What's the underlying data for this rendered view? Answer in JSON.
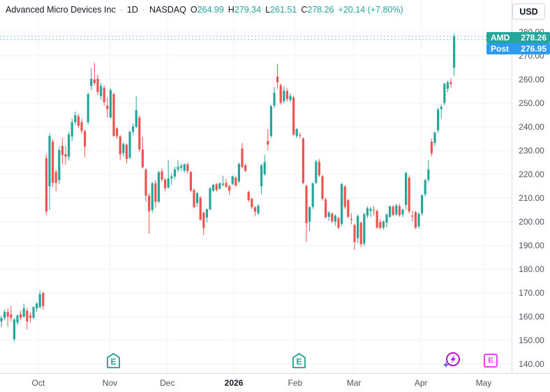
{
  "header": {
    "title": "Advanced Micro Devices Inc",
    "sep": "·",
    "interval": "1D",
    "exchange": "NASDAQ",
    "ohlc": [
      {
        "label": "O",
        "value": "264.99"
      },
      {
        "label": "H",
        "value": "279.34"
      },
      {
        "label": "L",
        "value": "261.51"
      },
      {
        "label": "C",
        "value": "278.26"
      }
    ],
    "change": "+20.14 (+7.80%)",
    "currency": "USD"
  },
  "price_labels": {
    "last": {
      "name": "AMD",
      "value": "278.26",
      "price": 278.26,
      "color": "#26a69a"
    },
    "post": {
      "name": "Post",
      "value": "276.95",
      "price": 276.95,
      "color": "#2d9bf0"
    }
  },
  "markers": {
    "earnings": [
      {
        "name": "earnings-icon",
        "i": 34.8
      },
      {
        "name": "earnings-icon",
        "i": 92.6
      }
    ],
    "ai_event": {
      "name": "tech-event-icon",
      "i": 140.2
    },
    "future_earnings": {
      "name": "upcoming-earnings-icon",
      "i": 152.4
    }
  },
  "chart_data": {
    "type": "candlestick",
    "title": "AMD daily candlestick chart",
    "up_color": "#26a69a",
    "down_color": "#ef5350",
    "grid_color": "#f0f2f8",
    "grid": true,
    "price_axis": {
      "min": 140,
      "max": 283,
      "tick_step": 10,
      "ticks": [
        280,
        270,
        260,
        250,
        240,
        230,
        220,
        210,
        200,
        190,
        180,
        170,
        160,
        150,
        140
      ]
    },
    "time_ticks": [
      {
        "label": "Oct",
        "i": 11.5
      },
      {
        "label": "Nov",
        "i": 33.8
      },
      {
        "label": "Dec",
        "i": 51.7
      },
      {
        "label": "2026",
        "i": 72.4,
        "year": true
      },
      {
        "label": "Feb",
        "i": 91.5
      },
      {
        "label": "Mar",
        "i": 109.8
      },
      {
        "label": "Apr",
        "i": 130.7
      },
      {
        "label": "May",
        "i": 150.2
      }
    ],
    "price_lines": [
      {
        "price": 278.26,
        "color": "#26a69a"
      },
      {
        "price": 276.95,
        "color": "#2d9bf0"
      }
    ],
    "candles": [
      [
        158,
        160.5,
        155.5,
        159.5
      ],
      [
        159.5,
        163,
        158.5,
        162
      ],
      [
        162,
        163.5,
        156,
        160
      ],
      [
        161,
        164.5,
        158,
        159.5
      ],
      [
        150.5,
        159.5,
        149.5,
        158.8
      ],
      [
        157.5,
        161,
        156.5,
        160.5
      ],
      [
        161,
        162.5,
        158.5,
        159.5
      ],
      [
        160,
        165.5,
        159.5,
        163.5
      ],
      [
        162.5,
        163.5,
        154.5,
        158
      ],
      [
        160.5,
        162,
        157.5,
        159.5
      ],
      [
        159.5,
        164.5,
        159,
        164
      ],
      [
        163.5,
        166,
        162,
        165.5
      ],
      [
        164,
        171,
        163.5,
        169.5
      ],
      [
        170,
        170.5,
        163,
        164.5
      ],
      [
        226.8,
        228.5,
        203,
        204.4
      ],
      [
        215,
        237.4,
        205,
        236.2
      ],
      [
        233.8,
        234.7,
        214.7,
        216.5
      ],
      [
        221,
        222,
        212.9,
        216.5
      ],
      [
        217.6,
        231.8,
        216,
        230.3
      ],
      [
        232,
        235.3,
        224.4,
        228.2
      ],
      [
        228.5,
        232,
        224,
        227.5
      ],
      [
        227.4,
        238,
        226,
        236.8
      ],
      [
        236,
        243.5,
        234,
        242
      ],
      [
        242,
        246.5,
        241,
        245
      ],
      [
        244.5,
        245.5,
        239.5,
        240.5
      ],
      [
        242,
        243.5,
        237,
        238.3
      ],
      [
        238.2,
        239,
        227.4,
        231.8
      ],
      [
        242,
        254.5,
        241,
        253.8
      ],
      [
        257.3,
        264.7,
        255.5,
        260.3
      ],
      [
        260,
        267,
        257.5,
        258.5
      ],
      [
        260.3,
        262,
        253.5,
        254.7
      ],
      [
        253,
        258.5,
        251.5,
        257.3
      ],
      [
        256.5,
        257.5,
        249,
        250.5
      ],
      [
        249,
        252.5,
        244,
        247.5
      ],
      [
        244,
        256.2,
        243.5,
        255.5
      ],
      [
        253.8,
        254.5,
        235.8,
        236.2
      ],
      [
        239.4,
        240,
        235,
        236
      ],
      [
        236,
        236.5,
        226,
        228.5
      ],
      [
        229,
        233.5,
        227.5,
        232.8
      ],
      [
        232.5,
        233,
        224.5,
        226.5
      ],
      [
        227,
        238.5,
        226.5,
        238
      ],
      [
        238,
        241.5,
        236.5,
        240.2
      ],
      [
        240,
        252.9,
        239.5,
        247.1
      ],
      [
        244,
        245,
        229.5,
        230.5
      ],
      [
        230.5,
        236,
        222.5,
        223
      ],
      [
        222,
        222.5,
        208.5,
        211
      ],
      [
        211,
        212,
        195,
        204.5
      ],
      [
        205,
        216.8,
        203.8,
        216.2
      ],
      [
        216.2,
        217.5,
        206,
        208.5
      ],
      [
        208.5,
        221.5,
        208,
        220.9
      ],
      [
        221.3,
        222.5,
        217,
        217.8
      ],
      [
        217.8,
        218.5,
        212.9,
        214.2
      ],
      [
        214.5,
        225.9,
        214,
        218.3
      ],
      [
        218.3,
        220.5,
        215.5,
        219.2
      ],
      [
        219.1,
        223.2,
        218,
        222.1
      ],
      [
        222,
        226,
        221,
        223.2
      ],
      [
        222.8,
        224.5,
        221.5,
        223.6
      ],
      [
        221.5,
        224.6,
        220.8,
        224.3
      ],
      [
        224.2,
        225,
        220.3,
        221.4
      ],
      [
        221,
        221.5,
        212.6,
        213.2
      ],
      [
        213.4,
        214,
        205.8,
        206.2
      ],
      [
        207.9,
        212.4,
        206.4,
        212.1
      ],
      [
        210.2,
        210.8,
        200.4,
        200.9
      ],
      [
        203.9,
        204.4,
        194.4,
        197.4
      ],
      [
        201.8,
        205.6,
        199.8,
        205.3
      ],
      [
        205.2,
        214.6,
        204.8,
        214.1
      ],
      [
        213.1,
        216,
        212.6,
        215.6
      ],
      [
        215.8,
        216.4,
        212.7,
        213.4
      ],
      [
        214,
        216.6,
        213.4,
        216.3
      ],
      [
        215.6,
        219.4,
        214.9,
        216.1
      ],
      [
        216.4,
        218.1,
        214.2,
        214.8
      ],
      [
        215.1,
        215.6,
        211.4,
        213.1
      ],
      [
        216,
        219.6,
        215.4,
        219.1
      ],
      [
        218.6,
        219.2,
        214.8,
        215.3
      ],
      [
        217,
        224.9,
        216.4,
        224.4
      ],
      [
        230.9,
        233.2,
        222.4,
        223.1
      ],
      [
        223.8,
        224.6,
        220.9,
        221.5
      ],
      [
        212.6,
        213.1,
        208.4,
        209.1
      ],
      [
        209.7,
        210.2,
        205.4,
        206.2
      ],
      [
        206.1,
        206.6,
        202.4,
        204.3
      ],
      [
        203.6,
        207.4,
        202.9,
        206.8
      ],
      [
        215,
        224.4,
        211.6,
        223.8
      ],
      [
        220.1,
        228.2,
        219.4,
        225.1
      ],
      [
        234.1,
        239.1,
        230.3,
        232.6
      ],
      [
        236.2,
        249.2,
        235.4,
        248.8
      ],
      [
        249,
        256.8,
        247.9,
        254.4
      ],
      [
        261.2,
        266.5,
        256.1,
        258.8
      ],
      [
        257.6,
        258.4,
        249.4,
        250.2
      ],
      [
        250.9,
        257.1,
        249.9,
        255.3
      ],
      [
        255.1,
        256.2,
        250.8,
        251.8
      ],
      [
        251.4,
        254.2,
        250.4,
        253.1
      ],
      [
        252.4,
        253.2,
        236.4,
        236.8
      ],
      [
        236.1,
        239.6,
        235.4,
        239.1
      ],
      [
        236.6,
        237.6,
        235.2,
        236.3
      ],
      [
        235.1,
        235.6,
        215.8,
        216.4
      ],
      [
        215.2,
        215.7,
        191.5,
        199.4
      ],
      [
        200.1,
        206.6,
        196.1,
        206.2
      ],
      [
        206.3,
        216.6,
        205.4,
        216.2
      ],
      [
        216.4,
        226.1,
        215.9,
        225.4
      ],
      [
        225.3,
        226.4,
        218.9,
        219.6
      ],
      [
        219.2,
        219.8,
        208.9,
        209.7
      ],
      [
        209.4,
        210.1,
        201.4,
        202
      ],
      [
        202.1,
        204.6,
        200.4,
        203.9
      ],
      [
        203.4,
        204.1,
        199.4,
        200.2
      ],
      [
        200.1,
        203.1,
        198.4,
        202.6
      ],
      [
        201.6,
        202.1,
        196.8,
        197.5
      ],
      [
        199.1,
        216.4,
        198.4,
        215.9
      ],
      [
        214.9,
        215.4,
        205.4,
        206.3
      ],
      [
        209.1,
        209.6,
        201.4,
        202.1
      ],
      [
        201.2,
        203.6,
        198.9,
        200.9
      ],
      [
        198.6,
        199.1,
        188.2,
        191.5
      ],
      [
        193.1,
        203.1,
        191.1,
        202.4
      ],
      [
        199.6,
        200.1,
        189.4,
        190.6
      ],
      [
        190.8,
        203.9,
        189.7,
        203.2
      ],
      [
        202.6,
        206.6,
        201.6,
        205.8
      ],
      [
        204.6,
        206.4,
        202.1,
        205.5
      ],
      [
        205.1,
        206.6,
        202.6,
        204.9
      ],
      [
        204.6,
        205.1,
        197.1,
        197.6
      ],
      [
        199.9,
        201.1,
        196.9,
        197.4
      ],
      [
        197.6,
        200.6,
        196.6,
        200.1
      ],
      [
        199.6,
        203.6,
        197.6,
        203.1
      ],
      [
        202.1,
        206.9,
        201.6,
        206.5
      ],
      [
        206.4,
        207.1,
        202.4,
        202.9
      ],
      [
        203.1,
        207.6,
        202.6,
        206.9
      ],
      [
        206.6,
        207.6,
        202.1,
        202.8
      ],
      [
        203.1,
        205.6,
        201.9,
        205.1
      ],
      [
        207.1,
        221.1,
        205.1,
        220.6
      ],
      [
        218.6,
        219.6,
        203.6,
        204.4
      ],
      [
        202.6,
        204.6,
        200.1,
        202.2
      ],
      [
        204.1,
        204.6,
        196.9,
        197.6
      ],
      [
        198.1,
        203.9,
        197.1,
        203.4
      ],
      [
        203.6,
        211.6,
        202.6,
        211.2
      ],
      [
        211.6,
        218.1,
        210.6,
        217.6
      ],
      [
        217.7,
        225.9,
        216.6,
        222.1
      ],
      [
        233.8,
        235.1,
        227.6,
        228.9
      ],
      [
        233.2,
        238.1,
        231.9,
        237.6
      ],
      [
        238.6,
        248.1,
        237.6,
        247.4
      ],
      [
        247.6,
        249.6,
        243.6,
        248.5
      ],
      [
        250.1,
        258.6,
        249.1,
        258.2
      ],
      [
        256.1,
        259.6,
        254.6,
        258.8
      ],
      [
        258.9,
        260.5,
        256.5,
        258.12
      ],
      [
        264.99,
        279.34,
        261.51,
        278.26
      ]
    ]
  }
}
